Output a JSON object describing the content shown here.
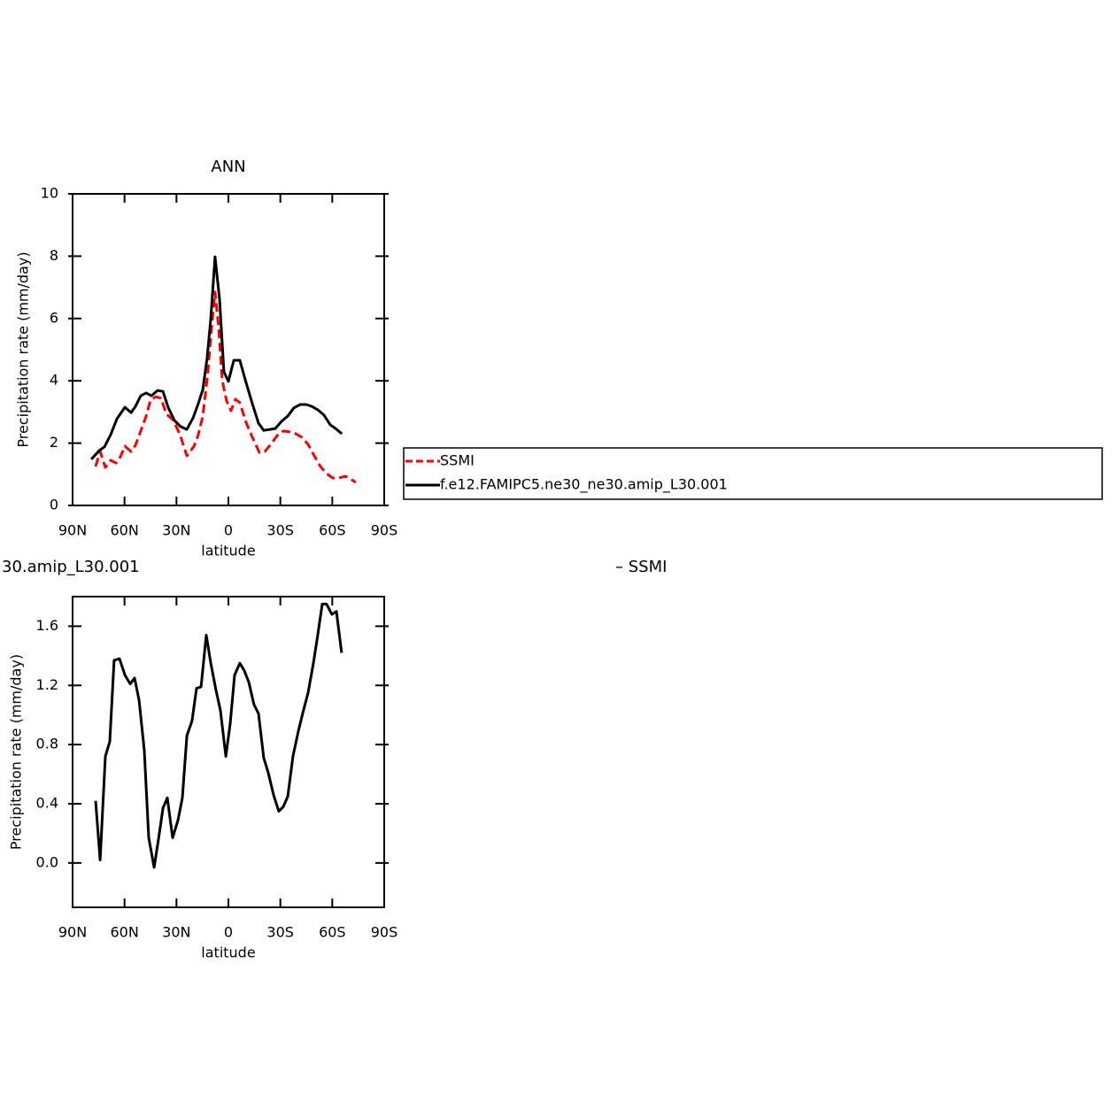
{
  "chart_data": [
    {
      "type": "line",
      "title": "ANN",
      "x_label": "latitude",
      "y_label": "Precipitation rate (mm/day)",
      "xlim": [
        90,
        -90
      ],
      "xticks": [
        {
          "value": 90,
          "label": "90N"
        },
        {
          "value": 60,
          "label": "60N"
        },
        {
          "value": 30,
          "label": "30N"
        },
        0,
        {
          "value": -30,
          "label": "30S"
        },
        {
          "value": -60,
          "label": "60S"
        },
        {
          "value": -90,
          "label": "90S"
        }
      ],
      "ylim": [
        0,
        10
      ],
      "yticks": [
        0,
        2,
        4,
        6,
        8,
        10
      ],
      "legend": "right",
      "series": [
        {
          "name": "SSMI",
          "color": "#ff0000",
          "dash": "dashed",
          "x": [
            76.7,
            74.1,
            71.1,
            68,
            64.9,
            62.4,
            59.8,
            56.2,
            53.7,
            50.6,
            47.5,
            45,
            41.9,
            38.9,
            35.8,
            32.2,
            28.1,
            24,
            19.9,
            17.4,
            14.8,
            11.8,
            10.2,
            7.7,
            5.6,
            3.6,
            1,
            -1.5,
            -4.1,
            -6.6,
            -10.2,
            -13.8,
            -17.9,
            -21,
            -24.5,
            -28.1,
            -31.7,
            -35.3,
            -38.9,
            -42.4,
            -46,
            -49.6,
            -53.2,
            -56.7,
            -60.3,
            -63.9,
            -67.5,
            -70.6,
            -73.6
          ],
          "values": [
            1.25,
            1.73,
            1.22,
            1.45,
            1.36,
            1.56,
            1.9,
            1.73,
            1.93,
            2.39,
            2.87,
            3.38,
            3.49,
            3.44,
            2.93,
            2.76,
            2.3,
            1.59,
            1.9,
            2.27,
            2.87,
            4.29,
            5.43,
            6.85,
            5.71,
            4.01,
            3.35,
            3.04,
            3.41,
            3.3,
            2.67,
            2.19,
            1.7,
            1.73,
            1.96,
            2.24,
            2.39,
            2.36,
            2.3,
            2.19,
            1.96,
            1.59,
            1.25,
            1.02,
            0.88,
            0.88,
            0.94,
            0.85,
            0.74
          ]
        },
        {
          "name": "f.e12.FAMIPC5.ne30_ne30.amip_L30.001",
          "color": "#000000",
          "dash": "solid",
          "x": [
            79.2,
            74.6,
            71.6,
            68,
            64.4,
            59.8,
            56.2,
            53.7,
            50.6,
            47.5,
            44.5,
            40.9,
            37.8,
            34.8,
            31.2,
            27.6,
            24,
            20.4,
            17.4,
            14.8,
            12.3,
            10.2,
            7.7,
            5.1,
            2.6,
            0,
            -3.1,
            -6.6,
            -10.2,
            -13.8,
            -17.4,
            -20.4,
            -24,
            -27.1,
            -30.7,
            -34.3,
            -37.8,
            -41.4,
            -45,
            -48.1,
            -51.6,
            -55.2,
            -58.8,
            -61.9,
            -65.5
          ],
          "values": [
            1.48,
            1.76,
            1.88,
            2.27,
            2.78,
            3.15,
            2.98,
            3.18,
            3.52,
            3.61,
            3.52,
            3.69,
            3.66,
            3.15,
            2.73,
            2.53,
            2.44,
            2.81,
            3.27,
            3.72,
            4.72,
            5.99,
            7.98,
            6.62,
            4.29,
            3.98,
            4.66,
            4.66,
            3.95,
            3.27,
            2.64,
            2.41,
            2.44,
            2.47,
            2.7,
            2.87,
            3.13,
            3.24,
            3.24,
            3.18,
            3.07,
            2.9,
            2.59,
            2.47,
            2.3
          ]
        }
      ]
    },
    {
      "type": "line",
      "left_title": "30.amip_L30.001",
      "right_title": "– SSMI",
      "x_label": "latitude",
      "y_label": "Precipitation rate (mm/day)",
      "xlim": [
        90,
        -90
      ],
      "xticks": [
        {
          "value": 90,
          "label": "90N"
        },
        {
          "value": 60,
          "label": "60N"
        },
        {
          "value": 30,
          "label": "30N"
        },
        0,
        {
          "value": -30,
          "label": "30S"
        },
        {
          "value": -60,
          "label": "60S"
        },
        {
          "value": -90,
          "label": "90S"
        }
      ],
      "ylim": [
        -0.3,
        1.8
      ],
      "yticks": [
        {
          "value": 0,
          "label": "0.0"
        },
        0.4,
        0.8,
        1.2,
        1.6
      ],
      "series": [
        {
          "color": "#000000",
          "dash": "solid",
          "x": [
            76.7,
            74.1,
            71.1,
            68.5,
            66,
            62.9,
            59.8,
            56.7,
            54.2,
            51.6,
            48.6,
            46,
            42.9,
            40.4,
            37.8,
            35.3,
            32.2,
            29.1,
            26.6,
            24,
            21,
            18.4,
            15.8,
            12.8,
            10.2,
            7.2,
            4.6,
            1.5,
            -1,
            -3.6,
            -6.6,
            -9.2,
            -11.8,
            -14.8,
            -17.4,
            -20.4,
            -23,
            -26.1,
            -29.1,
            -31.7,
            -34.3,
            -37.3,
            -40.4,
            -42.9,
            -46,
            -49.1,
            -51.6,
            -54.2,
            -56.7,
            -59.8,
            -62.4,
            -65.4
          ],
          "values": [
            0.42,
            0.02,
            0.72,
            0.82,
            1.37,
            1.38,
            1.27,
            1.21,
            1.25,
            1.1,
            0.76,
            0.17,
            -0.03,
            0.16,
            0.37,
            0.44,
            0.17,
            0.29,
            0.44,
            0.86,
            0.96,
            1.18,
            1.19,
            1.54,
            1.35,
            1.17,
            1.03,
            0.72,
            0.94,
            1.27,
            1.35,
            1.3,
            1.22,
            1.07,
            1.01,
            0.71,
            0.61,
            0.46,
            0.35,
            0.38,
            0.45,
            0.72,
            0.89,
            1.01,
            1.15,
            1.35,
            1.54,
            1.75,
            1.75,
            1.68,
            1.7,
            1.42
          ]
        }
      ]
    }
  ]
}
